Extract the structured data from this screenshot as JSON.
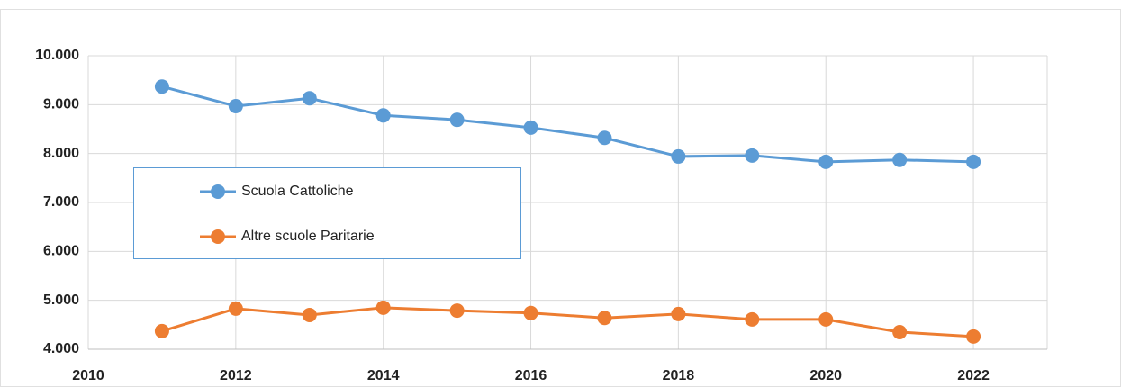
{
  "chart_data": {
    "type": "line",
    "x": [
      2011,
      2012,
      2013,
      2014,
      2015,
      2016,
      2017,
      2018,
      2019,
      2020,
      2021,
      2022
    ],
    "series": [
      {
        "name": "Scuola Cattoliche",
        "color": "#5b9bd5",
        "values": [
          9370,
          8970,
          9130,
          8780,
          8690,
          8530,
          8320,
          7940,
          7960,
          7830,
          7870,
          7830
        ]
      },
      {
        "name": "Altre scuole Paritarie",
        "color": "#ed7d31",
        "values": [
          4370,
          4830,
          4700,
          4850,
          4790,
          4740,
          4640,
          4720,
          4610,
          4610,
          4350,
          4260
        ]
      }
    ],
    "xlim": [
      2010,
      2023
    ],
    "xticks": [
      2010,
      2012,
      2014,
      2016,
      2018,
      2020,
      2022
    ],
    "ylim": [
      4000,
      10000
    ],
    "yticks": [
      {
        "value": 4000,
        "label": "4.000"
      },
      {
        "value": 5000,
        "label": "5.000"
      },
      {
        "value": 6000,
        "label": "6.000"
      },
      {
        "value": 7000,
        "label": "7.000"
      },
      {
        "value": 8000,
        "label": "8.000"
      },
      {
        "value": 9000,
        "label": "9.000"
      },
      {
        "value": 10000,
        "label": "10.000"
      }
    ],
    "grid": true,
    "legend": "left"
  }
}
